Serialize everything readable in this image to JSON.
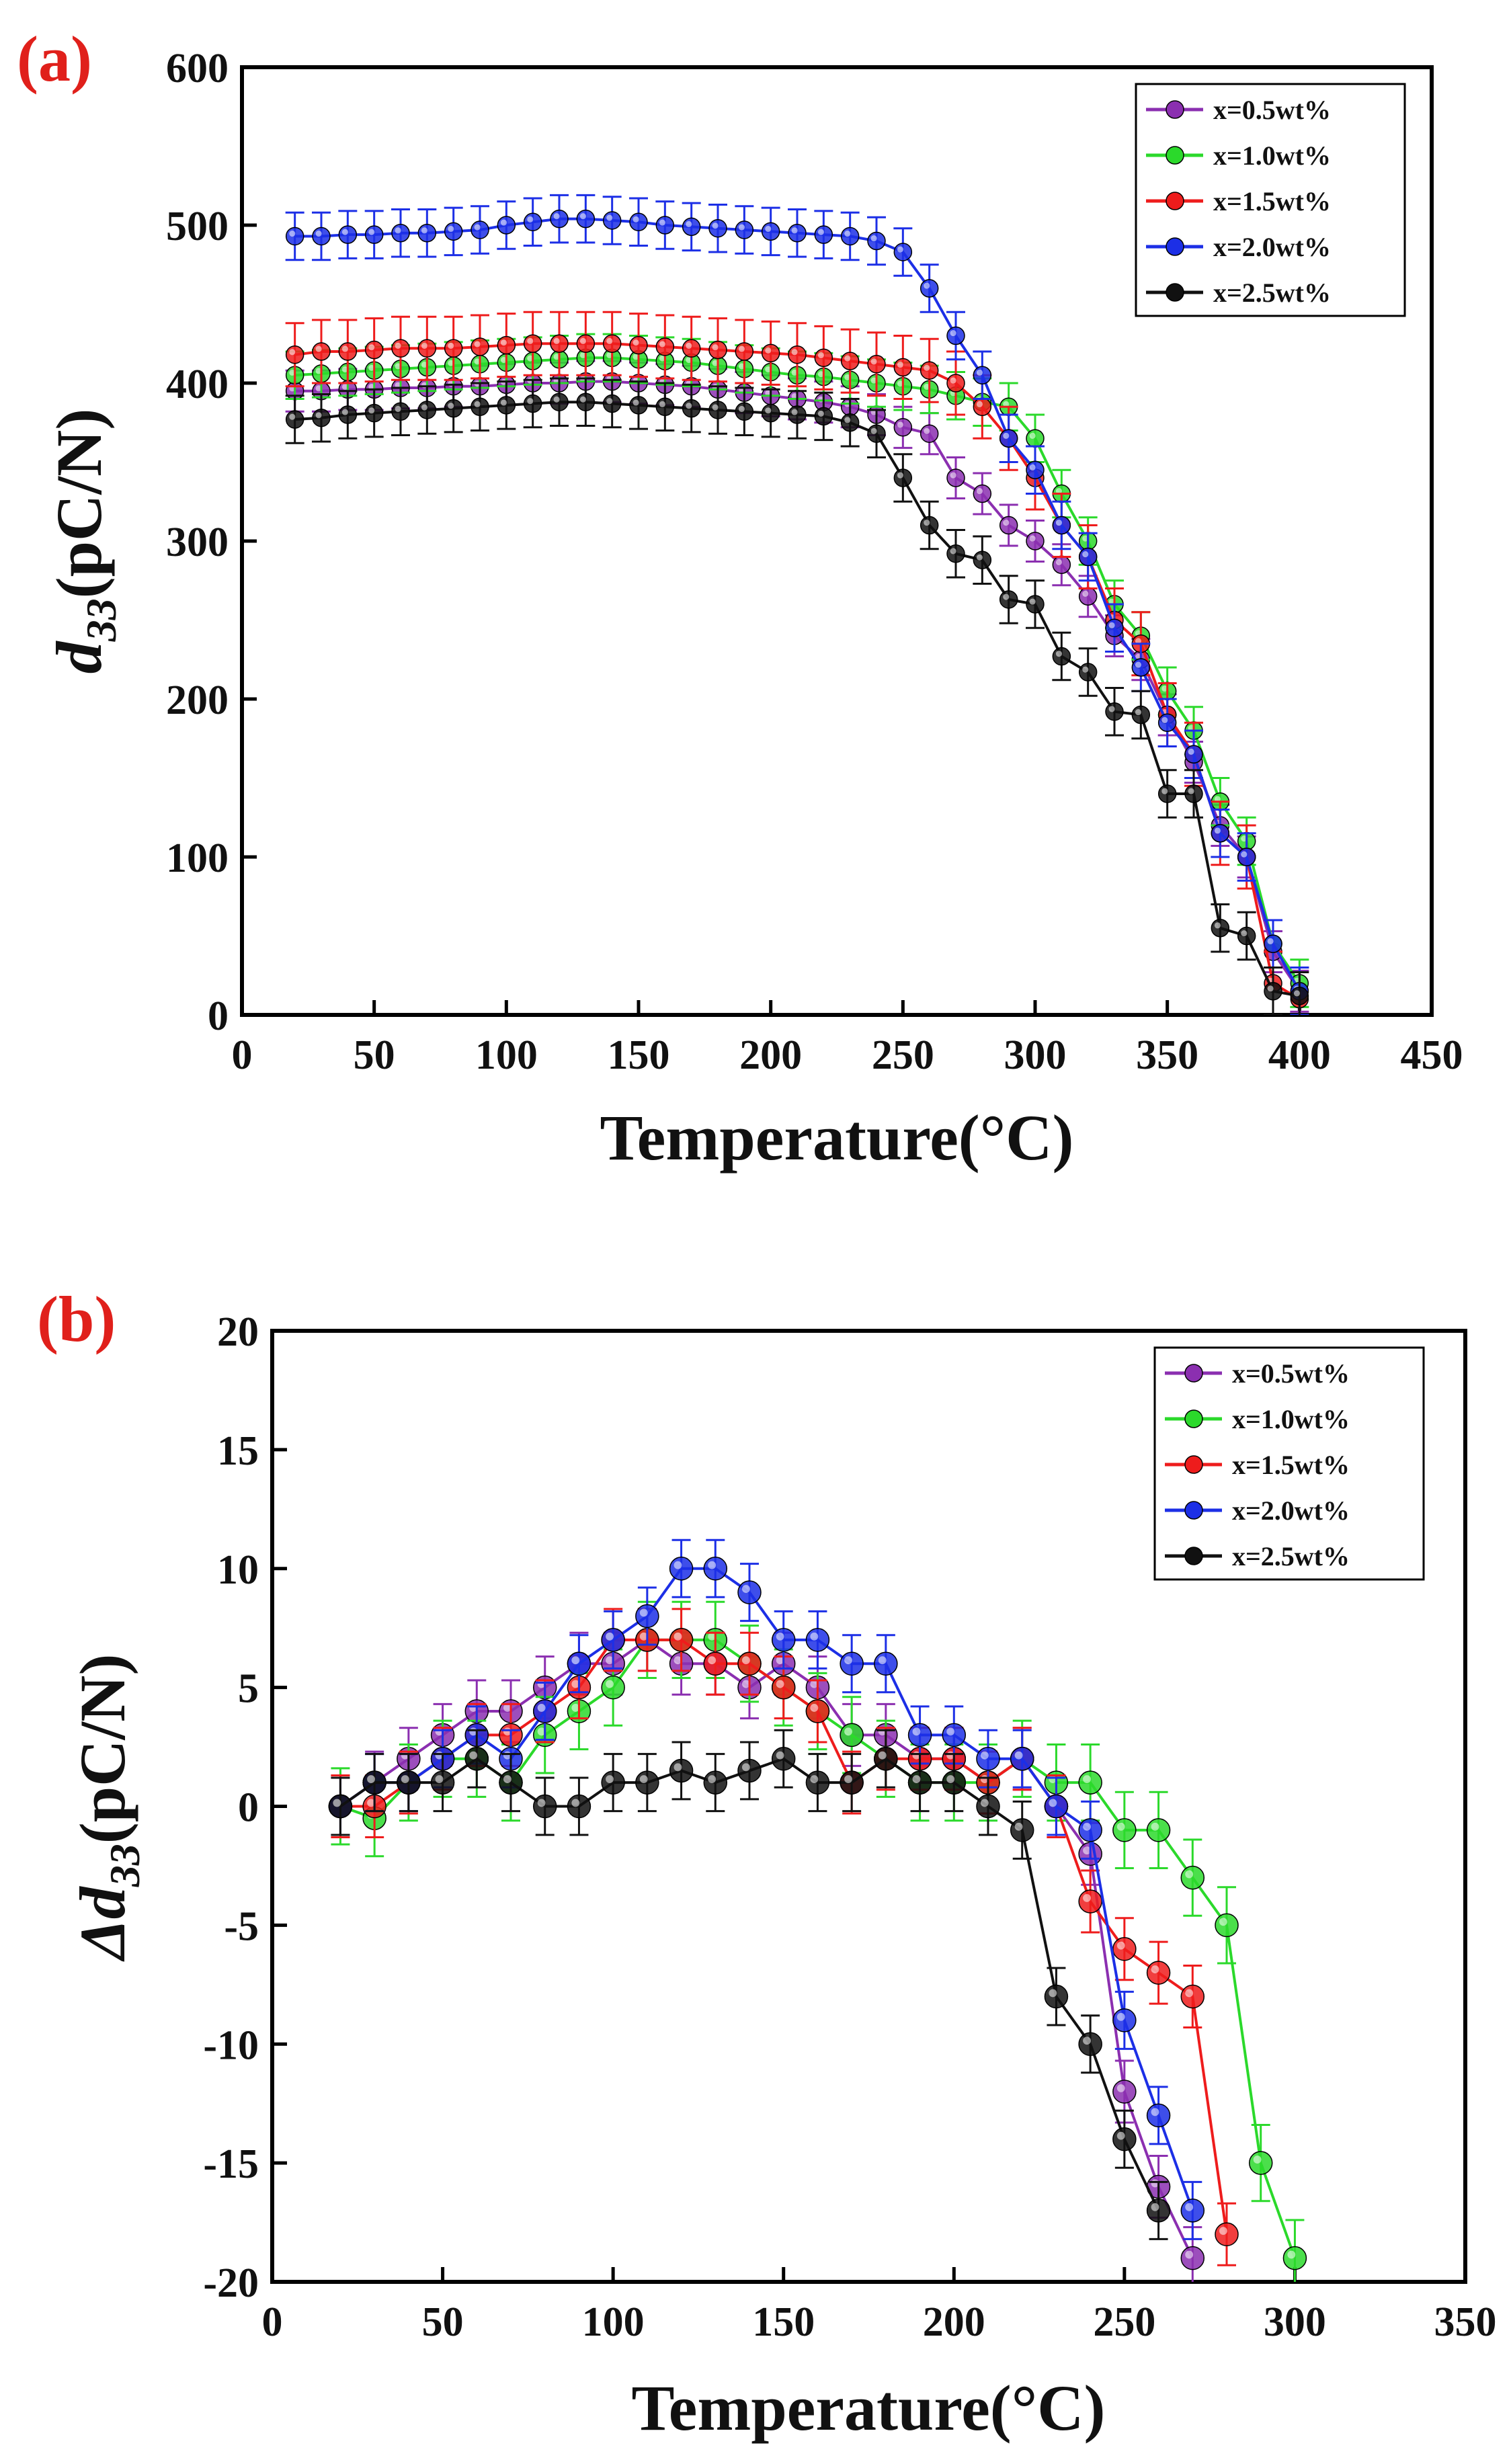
{
  "panels": {
    "a": {
      "label": "(a)"
    },
    "b": {
      "label": "(b)"
    }
  },
  "chart_data": [
    {
      "id": "a",
      "type": "line",
      "title": "",
      "xlabel": "Temperature(°C)",
      "ylabel_parts": {
        "main": "d",
        "sub": "33",
        "rest": "(pC/N)"
      },
      "xlim": [
        0,
        450
      ],
      "ylim": [
        0,
        600
      ],
      "xticks": [
        0,
        50,
        100,
        150,
        200,
        250,
        300,
        350,
        400,
        450
      ],
      "yticks": [
        0,
        100,
        200,
        300,
        400,
        500,
        600
      ],
      "grid": false,
      "legend_position": "top-right",
      "series": [
        {
          "name": "x=0.5wt%",
          "color": "#8b2fb0",
          "err": 13,
          "x": [
            20,
            30,
            40,
            50,
            60,
            70,
            80,
            90,
            100,
            110,
            120,
            130,
            140,
            150,
            160,
            170,
            180,
            190,
            200,
            210,
            220,
            230,
            240,
            250,
            260,
            270,
            280,
            290,
            300,
            310,
            320,
            330,
            340,
            350,
            360,
            370,
            380,
            390,
            400
          ],
          "y": [
            395,
            395,
            396,
            396,
            397,
            397,
            398,
            398,
            399,
            400,
            400,
            401,
            401,
            400,
            399,
            398,
            396,
            394,
            392,
            390,
            388,
            385,
            380,
            372,
            368,
            340,
            330,
            310,
            300,
            285,
            265,
            240,
            225,
            190,
            160,
            120,
            100,
            40,
            15
          ]
        },
        {
          "name": "x=1.0wt%",
          "color": "#2bd92b",
          "err": 15,
          "x": [
            20,
            30,
            40,
            50,
            60,
            70,
            80,
            90,
            100,
            110,
            120,
            130,
            140,
            150,
            160,
            170,
            180,
            190,
            200,
            210,
            220,
            230,
            240,
            250,
            260,
            270,
            280,
            290,
            300,
            310,
            320,
            330,
            340,
            350,
            360,
            370,
            380,
            390,
            400
          ],
          "y": [
            405,
            406,
            407,
            408,
            409,
            410,
            411,
            412,
            413,
            414,
            415,
            416,
            416,
            415,
            414,
            413,
            411,
            409,
            407,
            405,
            404,
            402,
            400,
            398,
            396,
            392,
            388,
            385,
            365,
            330,
            300,
            260,
            240,
            205,
            180,
            135,
            110,
            45,
            20
          ]
        },
        {
          "name": "x=1.5wt%",
          "color": "#ee1c1c",
          "err": 20,
          "x": [
            20,
            30,
            40,
            50,
            60,
            70,
            80,
            90,
            100,
            110,
            120,
            130,
            140,
            150,
            160,
            170,
            180,
            190,
            200,
            210,
            220,
            230,
            240,
            250,
            260,
            270,
            280,
            290,
            300,
            310,
            320,
            330,
            340,
            350,
            360,
            370,
            380,
            390,
            400
          ],
          "y": [
            418,
            420,
            420,
            421,
            422,
            422,
            422,
            423,
            424,
            425,
            425,
            425,
            425,
            424,
            423,
            422,
            421,
            420,
            419,
            418,
            416,
            414,
            412,
            410,
            408,
            400,
            385,
            365,
            340,
            310,
            290,
            250,
            235,
            190,
            165,
            115,
            100,
            20,
            10
          ]
        },
        {
          "name": "x=2.0wt%",
          "color": "#1c2fe6",
          "err": 15,
          "x": [
            20,
            30,
            40,
            50,
            60,
            70,
            80,
            90,
            100,
            110,
            120,
            130,
            140,
            150,
            160,
            170,
            180,
            190,
            200,
            210,
            220,
            230,
            240,
            250,
            260,
            270,
            280,
            290,
            300,
            310,
            320,
            330,
            340,
            350,
            360,
            370,
            380,
            390,
            400
          ],
          "y": [
            493,
            493,
            494,
            494,
            495,
            495,
            496,
            497,
            500,
            502,
            504,
            504,
            503,
            502,
            500,
            499,
            498,
            497,
            496,
            495,
            494,
            493,
            490,
            483,
            460,
            430,
            405,
            365,
            345,
            310,
            290,
            245,
            220,
            185,
            165,
            115,
            100,
            45,
            15
          ]
        },
        {
          "name": "x=2.5wt%",
          "color": "#111111",
          "err": 15,
          "x": [
            20,
            30,
            40,
            50,
            60,
            70,
            80,
            90,
            100,
            110,
            120,
            130,
            140,
            150,
            160,
            170,
            180,
            190,
            200,
            210,
            220,
            230,
            240,
            250,
            260,
            270,
            280,
            290,
            300,
            310,
            320,
            330,
            340,
            350,
            360,
            370,
            380,
            390,
            400
          ],
          "y": [
            377,
            378,
            380,
            381,
            382,
            383,
            384,
            385,
            386,
            387,
            388,
            388,
            387,
            386,
            385,
            384,
            383,
            382,
            381,
            380,
            379,
            375,
            368,
            340,
            310,
            292,
            288,
            263,
            260,
            227,
            217,
            192,
            190,
            140,
            140,
            55,
            50,
            15,
            12
          ]
        }
      ]
    },
    {
      "id": "b",
      "type": "line",
      "title": "",
      "xlabel": "Temperature(°C)",
      "ylabel_parts": {
        "main": "Δd",
        "sub": "33",
        "rest": "(pC/N)"
      },
      "xlim": [
        0,
        350
      ],
      "ylim": [
        -20,
        20
      ],
      "xticks": [
        0,
        50,
        100,
        150,
        200,
        250,
        300,
        350
      ],
      "yticks": [
        -20,
        -15,
        -10,
        -5,
        0,
        5,
        10,
        15,
        20
      ],
      "grid": false,
      "legend_position": "top-right",
      "series": [
        {
          "name": "x=0.5wt%",
          "color": "#8b2fb0",
          "err": 1.3,
          "x": [
            20,
            30,
            40,
            50,
            60,
            70,
            80,
            90,
            100,
            110,
            120,
            130,
            140,
            150,
            160,
            170,
            180,
            190,
            200,
            210,
            220,
            230,
            240,
            250,
            260,
            270
          ],
          "y": [
            0,
            1,
            2,
            3,
            4,
            4,
            5,
            6,
            6,
            7,
            6,
            6,
            5,
            6,
            5,
            3,
            3,
            2,
            2,
            1,
            2,
            0,
            -2,
            -12,
            -16,
            -19
          ]
        },
        {
          "name": "x=1.0wt%",
          "color": "#2bd92b",
          "err": 1.6,
          "x": [
            20,
            30,
            40,
            50,
            60,
            70,
            80,
            90,
            100,
            110,
            120,
            130,
            140,
            150,
            160,
            170,
            180,
            190,
            200,
            210,
            220,
            230,
            240,
            250,
            260,
            270,
            280,
            290,
            300
          ],
          "y": [
            0,
            -0.5,
            1,
            2,
            2,
            1,
            3,
            4,
            5,
            7,
            7,
            7,
            6,
            5,
            4,
            3,
            2,
            1,
            1,
            1,
            2,
            1,
            1,
            -1,
            -1,
            -3,
            -5,
            -15,
            -19
          ]
        },
        {
          "name": "x=1.5wt%",
          "color": "#ee1c1c",
          "err": 1.3,
          "x": [
            20,
            30,
            40,
            50,
            60,
            70,
            80,
            90,
            100,
            110,
            120,
            130,
            140,
            150,
            160,
            170,
            180,
            190,
            200,
            210,
            220,
            230,
            240,
            250,
            260,
            270,
            280
          ],
          "y": [
            0,
            0,
            1,
            2,
            3,
            3,
            4,
            5,
            7,
            7,
            7,
            6,
            6,
            5,
            4,
            1,
            2,
            2,
            2,
            1,
            2,
            0,
            -4,
            -6,
            -7,
            -8,
            -18
          ]
        },
        {
          "name": "x=2.0wt%",
          "color": "#1c2fe6",
          "err": 1.2,
          "x": [
            20,
            30,
            40,
            50,
            60,
            70,
            80,
            90,
            100,
            110,
            120,
            130,
            140,
            150,
            160,
            170,
            180,
            190,
            200,
            210,
            220,
            230,
            240,
            250,
            260,
            270
          ],
          "y": [
            0,
            1,
            1,
            2,
            3,
            2,
            4,
            6,
            7,
            8,
            10,
            10,
            9,
            7,
            7,
            6,
            6,
            3,
            3,
            2,
            2,
            0,
            -1,
            -9,
            -13,
            -17
          ]
        },
        {
          "name": "x=2.5wt%",
          "color": "#111111",
          "err": 1.2,
          "x": [
            20,
            30,
            40,
            50,
            60,
            70,
            80,
            90,
            100,
            110,
            120,
            130,
            140,
            150,
            160,
            170,
            180,
            190,
            200,
            210,
            220,
            230,
            240,
            250,
            260
          ],
          "y": [
            0,
            1,
            1,
            1,
            2,
            1,
            0,
            0,
            1,
            1,
            1.5,
            1,
            1.5,
            2,
            1,
            1,
            2,
            1,
            1,
            0,
            -1,
            -8,
            -10,
            -14,
            -17
          ]
        }
      ]
    }
  ]
}
